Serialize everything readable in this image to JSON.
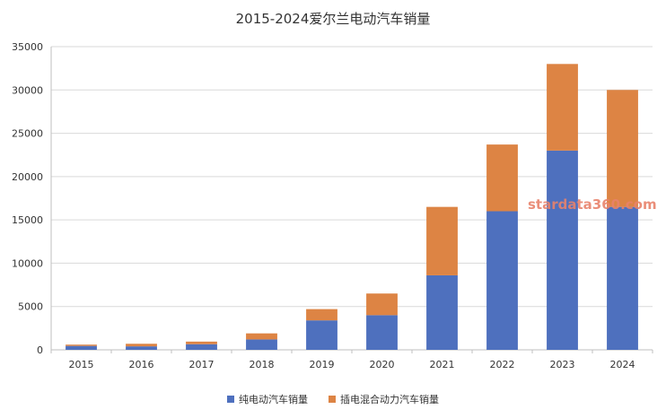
{
  "chart_data": {
    "type": "bar",
    "stacked": true,
    "title": "2015-2024爱尔兰电动汽车销量",
    "categories": [
      "2015",
      "2016",
      "2017",
      "2018",
      "2019",
      "2020",
      "2021",
      "2022",
      "2023",
      "2024"
    ],
    "series": [
      {
        "name": "纯电动汽车销量",
        "color": "#4e70be",
        "values": [
          450,
          400,
          650,
          1200,
          3400,
          4000,
          8600,
          16000,
          23000,
          16500
        ]
      },
      {
        "name": "插电混合动力汽车销量",
        "color": "#dd8444",
        "values": [
          150,
          300,
          300,
          700,
          1300,
          2500,
          7900,
          7700,
          10000,
          13500
        ]
      }
    ],
    "ylim": [
      0,
      35000
    ],
    "yticks": [
      0,
      5000,
      10000,
      15000,
      20000,
      25000,
      30000,
      35000
    ],
    "grid": true,
    "legend": "bottom",
    "xlabel": "",
    "ylabel": ""
  },
  "watermark": "stardata360.com"
}
